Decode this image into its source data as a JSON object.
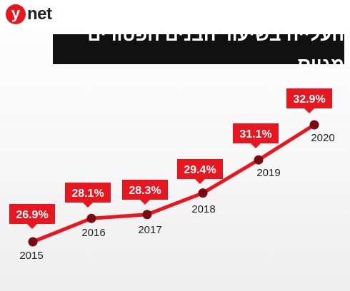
{
  "logo": {
    "mark": "y",
    "text": "net"
  },
  "colors": {
    "accent": "#e8161e",
    "marker": "#7a0a12",
    "title_bg": "#111111",
    "label_text": "#ffffff"
  },
  "chart_data": {
    "type": "line",
    "title": "העלייה בשיעור הבנים הפטורים מגיוס",
    "x": [
      "2015",
      "2016",
      "2017",
      "2018",
      "2019",
      "2020"
    ],
    "series": [
      {
        "values": [
          26.9,
          28.1,
          28.3,
          29.4,
          31.1,
          32.9
        ],
        "labels": [
          "26.9%",
          "28.1%",
          "28.3%",
          "29.4%",
          "31.1%",
          "32.9%"
        ]
      }
    ],
    "grid": false,
    "legend": "none"
  }
}
